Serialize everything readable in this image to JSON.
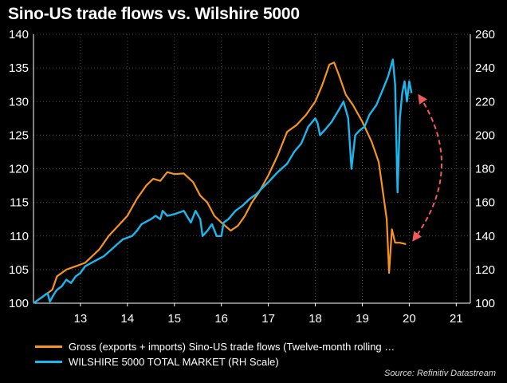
{
  "chart_data": {
    "type": "line",
    "title": "Sino-US trade flows vs. Wilshire 5000",
    "source": "Source: Refinitiv Datastream",
    "x_ticks": [
      "13",
      "14",
      "15",
      "16",
      "17",
      "18",
      "19",
      "20",
      "21"
    ],
    "x_tick_values": [
      2013,
      2014,
      2015,
      2016,
      2017,
      2018,
      2019,
      2020,
      2021
    ],
    "xlim": [
      2012,
      2021.3
    ],
    "left_axis": {
      "ylim": [
        100,
        140
      ],
      "ticks": [
        "100",
        "105",
        "110",
        "115",
        "120",
        "125",
        "130",
        "135",
        "140"
      ]
    },
    "right_axis": {
      "ylim": [
        100,
        260
      ],
      "ticks": [
        "100",
        "120",
        "140",
        "160",
        "180",
        "200",
        "220",
        "240",
        "260"
      ]
    },
    "grid": true,
    "legend_position": "bottom",
    "series": [
      {
        "name": "Gross (exports + imports) Sino-US trade flows (Twelve-month rolling …",
        "axis": "left",
        "color": "#f7941d",
        "x": [
          2012.0,
          2012.2,
          2012.4,
          2012.5,
          2012.7,
          2012.9,
          2013.1,
          2013.4,
          2013.6,
          2013.8,
          2014.0,
          2014.2,
          2014.4,
          2014.55,
          2014.7,
          2014.85,
          2015.0,
          2015.2,
          2015.4,
          2015.55,
          2015.7,
          2015.85,
          2016.0,
          2016.2,
          2016.35,
          2016.5,
          2016.65,
          2016.8,
          2017.0,
          2017.2,
          2017.4,
          2017.6,
          2017.8,
          2018.0,
          2018.15,
          2018.3,
          2018.4,
          2018.5,
          2018.65,
          2018.8,
          2019.0,
          2019.2,
          2019.35,
          2019.45,
          2019.52,
          2019.57,
          2019.63,
          2019.7,
          2019.8,
          2019.93
        ],
        "y": [
          100.0,
          101.0,
          102.0,
          104.0,
          105.0,
          105.5,
          106.0,
          108.0,
          110.0,
          111.5,
          113.0,
          115.5,
          117.5,
          118.5,
          118.2,
          119.5,
          119.2,
          119.3,
          118.0,
          116.0,
          115.0,
          113.0,
          112.0,
          110.8,
          111.5,
          113.0,
          115.0,
          116.5,
          119.0,
          122.0,
          125.5,
          126.5,
          128.0,
          130.0,
          132.5,
          135.5,
          135.8,
          134.0,
          131.0,
          129.5,
          127.0,
          124.0,
          121.0,
          116.0,
          112.5,
          104.5,
          111.0,
          109.0,
          109.0,
          108.8
        ]
      },
      {
        "name": "WILSHIRE 5000 TOTAL MARKET (RH Scale)",
        "axis": "right",
        "color": "#18b8f0",
        "x": [
          2012.0,
          2012.1,
          2012.2,
          2012.3,
          2012.35,
          2012.45,
          2012.5,
          2012.6,
          2012.7,
          2012.8,
          2012.9,
          2013.0,
          2013.1,
          2013.3,
          2013.5,
          2013.7,
          2013.9,
          2014.1,
          2014.2,
          2014.3,
          2014.5,
          2014.6,
          2014.7,
          2014.75,
          2014.85,
          2015.0,
          2015.2,
          2015.35,
          2015.45,
          2015.55,
          2015.6,
          2015.7,
          2015.8,
          2015.9,
          2016.0,
          2016.05,
          2016.15,
          2016.3,
          2016.45,
          2016.6,
          2016.75,
          2016.85,
          2017.0,
          2017.2,
          2017.4,
          2017.55,
          2017.7,
          2017.85,
          2018.0,
          2018.05,
          2018.1,
          2018.2,
          2018.35,
          2018.5,
          2018.6,
          2018.7,
          2018.77,
          2018.85,
          2018.95,
          2019.05,
          2019.15,
          2019.3,
          2019.45,
          2019.55,
          2019.65,
          2019.7,
          2019.75,
          2019.8,
          2019.85,
          2019.9,
          2019.95,
          2020.0,
          2020.05
        ],
        "y": [
          100.0,
          102.0,
          104.0,
          106.0,
          101.0,
          106.0,
          108.0,
          110.0,
          114.0,
          112.0,
          116.0,
          118.0,
          122.0,
          125.0,
          128.0,
          133.0,
          138.0,
          140.0,
          143.0,
          147.0,
          150.0,
          152.0,
          150.0,
          155.0,
          152.0,
          153.0,
          155.0,
          148.0,
          155.0,
          150.0,
          140.0,
          143.0,
          147.0,
          140.0,
          140.0,
          148.0,
          150.0,
          155.0,
          158.0,
          162.0,
          165.0,
          168.0,
          172.0,
          178.0,
          183.0,
          190.0,
          195.0,
          205.0,
          210.0,
          207.0,
          200.0,
          203.0,
          208.0,
          215.0,
          220.0,
          210.0,
          180.0,
          200.0,
          203.0,
          205.0,
          212.0,
          218.0,
          228.0,
          235.0,
          245.0,
          230.0,
          166.0,
          210.0,
          225.0,
          232.0,
          220.0,
          232.0,
          225.0
        ]
      }
    ],
    "annotation": {
      "type": "double-arrow",
      "color": "#f05a5a",
      "style": "dashed"
    }
  }
}
